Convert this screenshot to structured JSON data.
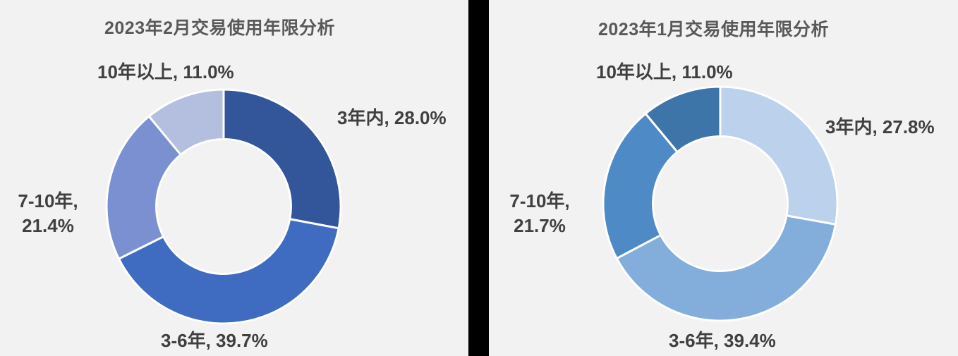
{
  "page": {
    "background_color": "#F2F2F2",
    "divider_color": "#000000",
    "title_color": "#595959",
    "label_color": "#404040"
  },
  "chart_data": [
    {
      "type": "pie",
      "subtype": "donut",
      "title": "2023年2月交易使用年限分析",
      "categories": [
        "3年内",
        "3-6年",
        "7-10年",
        "10年以上"
      ],
      "values": [
        28.0,
        39.7,
        21.4,
        11.0
      ],
      "unit": "%",
      "colors": [
        "#33569B",
        "#3F6CC1",
        "#7B90D0",
        "#B4BFE0"
      ],
      "start_angle_deg": 0,
      "direction": "clockwise",
      "inner_radius_ratio": 0.575,
      "segment_gap_color": "#FFFFFF",
      "legend": "none",
      "labels": {
        "seg_3nian": "3年内, 28.0%",
        "seg_36nian": "3-6年, 39.7%",
        "seg_710_line1": "7-10年,",
        "seg_710_line2": "21.4%",
        "seg_10plus": "10年以上, 11.0%"
      }
    },
    {
      "type": "pie",
      "subtype": "donut",
      "title": "2023年1月交易使用年限分析",
      "categories": [
        "3年内",
        "3-6年",
        "7-10年",
        "10年以上"
      ],
      "values": [
        27.8,
        39.4,
        21.7,
        11.0
      ],
      "unit": "%",
      "colors": [
        "#BCD1EB",
        "#83AEDC",
        "#4E8BC6",
        "#3E75A9"
      ],
      "start_angle_deg": 0,
      "direction": "clockwise",
      "inner_radius_ratio": 0.575,
      "segment_gap_color": "#FFFFFF",
      "legend": "none",
      "labels": {
        "seg_3nian": "3年内, 27.8%",
        "seg_36nian": "3-6年, 39.4%",
        "seg_710_line1": "7-10年,",
        "seg_710_line2": "21.7%",
        "seg_10plus": "10年以上, 11.0%"
      }
    }
  ]
}
